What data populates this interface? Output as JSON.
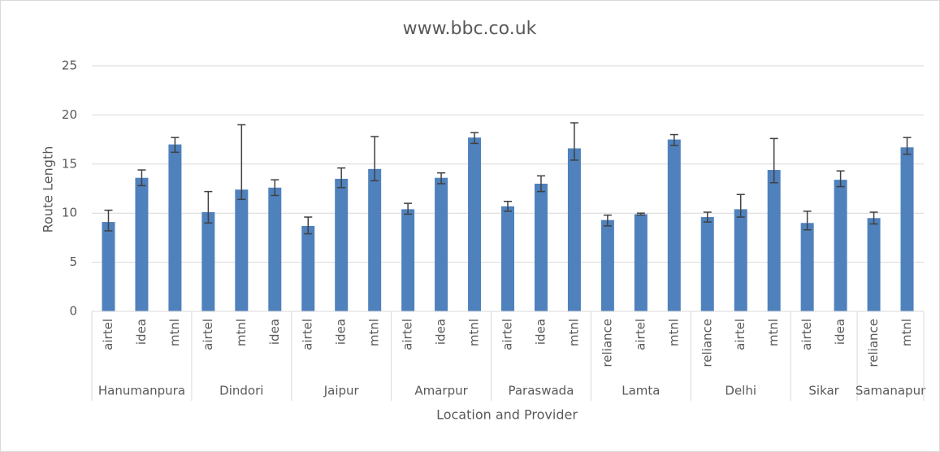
{
  "chart_data": {
    "type": "bar",
    "title": "www.bbc.co.uk",
    "x_label": "Location and Provider",
    "y_label": "Route Length",
    "color": "#4f81bd",
    "error_color": "#404040",
    "grid": true,
    "ylim": [
      0,
      25
    ],
    "yticks": [
      0,
      5,
      10,
      15,
      20,
      25
    ],
    "groups": [
      {
        "name": "Hanumanpura",
        "categories": [
          "airtel",
          "idea",
          "mtnl"
        ],
        "values": [
          9.1,
          13.6,
          17.0
        ],
        "error_plus": [
          1.2,
          0.8,
          0.7
        ],
        "error_minus": [
          0.9,
          0.8,
          0.8
        ]
      },
      {
        "name": "Dindori",
        "categories": [
          "airtel",
          "mtnl",
          "idea"
        ],
        "values": [
          10.1,
          12.4,
          12.6
        ],
        "error_plus": [
          2.1,
          6.6,
          0.8
        ],
        "error_minus": [
          1.1,
          1.0,
          0.8
        ]
      },
      {
        "name": "Jaipur",
        "categories": [
          "airtel",
          "idea",
          "mtnl"
        ],
        "values": [
          8.7,
          13.5,
          14.5
        ],
        "error_plus": [
          0.9,
          1.1,
          3.3
        ],
        "error_minus": [
          0.8,
          0.9,
          1.2
        ]
      },
      {
        "name": "Amarpur",
        "categories": [
          "airtel",
          "idea",
          "mtnl"
        ],
        "values": [
          10.4,
          13.6,
          17.7
        ],
        "error_plus": [
          0.6,
          0.5,
          0.5
        ],
        "error_minus": [
          0.5,
          0.6,
          0.6
        ]
      },
      {
        "name": "Paraswada",
        "categories": [
          "airtel",
          "idea",
          "mtnl"
        ],
        "values": [
          10.7,
          13.0,
          16.6
        ],
        "error_plus": [
          0.5,
          0.8,
          2.6
        ],
        "error_minus": [
          0.5,
          0.8,
          1.2
        ]
      },
      {
        "name": "Lamta",
        "categories": [
          "reliance",
          "airtel",
          "mtnl"
        ],
        "values": [
          9.3,
          9.9,
          17.5
        ],
        "error_plus": [
          0.5,
          0.1,
          0.5
        ],
        "error_minus": [
          0.6,
          0.1,
          0.6
        ]
      },
      {
        "name": "Delhi",
        "categories": [
          "reliance",
          "airtel",
          "mtnl"
        ],
        "values": [
          9.6,
          10.4,
          14.4
        ],
        "error_plus": [
          0.5,
          1.5,
          3.2
        ],
        "error_minus": [
          0.5,
          0.8,
          1.3
        ]
      },
      {
        "name": "Sikar",
        "categories": [
          "airtel",
          "idea"
        ],
        "values": [
          9.0,
          13.4
        ],
        "error_plus": [
          1.2,
          0.9
        ],
        "error_minus": [
          0.7,
          0.7
        ]
      },
      {
        "name": "Samanapur",
        "categories": [
          "reliance",
          "mtnl"
        ],
        "values": [
          9.5,
          16.7
        ],
        "error_plus": [
          0.6,
          1.0
        ],
        "error_minus": [
          0.6,
          0.7
        ]
      }
    ]
  }
}
